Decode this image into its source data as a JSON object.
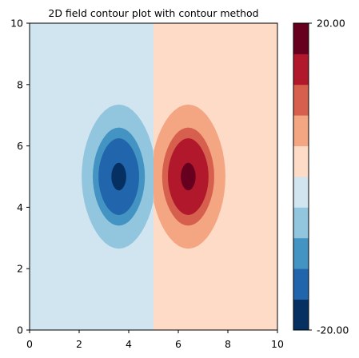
{
  "chart_data": {
    "type": "contour",
    "title": "2D field contour plot with contour method",
    "xlabel": "",
    "ylabel": "",
    "xlim": [
      0,
      10
    ],
    "ylim": [
      0,
      10
    ],
    "x_ticks": [
      "0",
      "2",
      "4",
      "6",
      "8",
      "10"
    ],
    "y_ticks": [
      "0",
      "2",
      "4",
      "6",
      "8",
      "10"
    ],
    "field": {
      "negative_lobe_center": [
        3.6,
        5.0
      ],
      "positive_lobe_center": [
        6.4,
        5.0
      ],
      "split_x": 5.0
    },
    "contour_levels": [
      {
        "level": -20,
        "color": "#053061"
      },
      {
        "level": -16,
        "color": "#2166ac"
      },
      {
        "level": -12,
        "color": "#4393c3"
      },
      {
        "level": -8,
        "color": "#92c5de"
      },
      {
        "level": -4,
        "color": "#d1e5f0"
      },
      {
        "level": 0,
        "color": "#fddbc7"
      },
      {
        "level": 4,
        "color": "#f4a582"
      },
      {
        "level": 8,
        "color": "#d6604d"
      },
      {
        "level": 12,
        "color": "#b2182b"
      },
      {
        "level": 16,
        "color": "#67001f"
      }
    ],
    "colorbar": {
      "min_label": "-20.00",
      "max_label": "20.00",
      "min": -20,
      "max": 20,
      "bands": [
        "#053061",
        "#2166ac",
        "#4393c3",
        "#92c5de",
        "#d1e5f0",
        "#fddbc7",
        "#f4a582",
        "#d6604d",
        "#b2182b",
        "#67001f"
      ]
    }
  }
}
